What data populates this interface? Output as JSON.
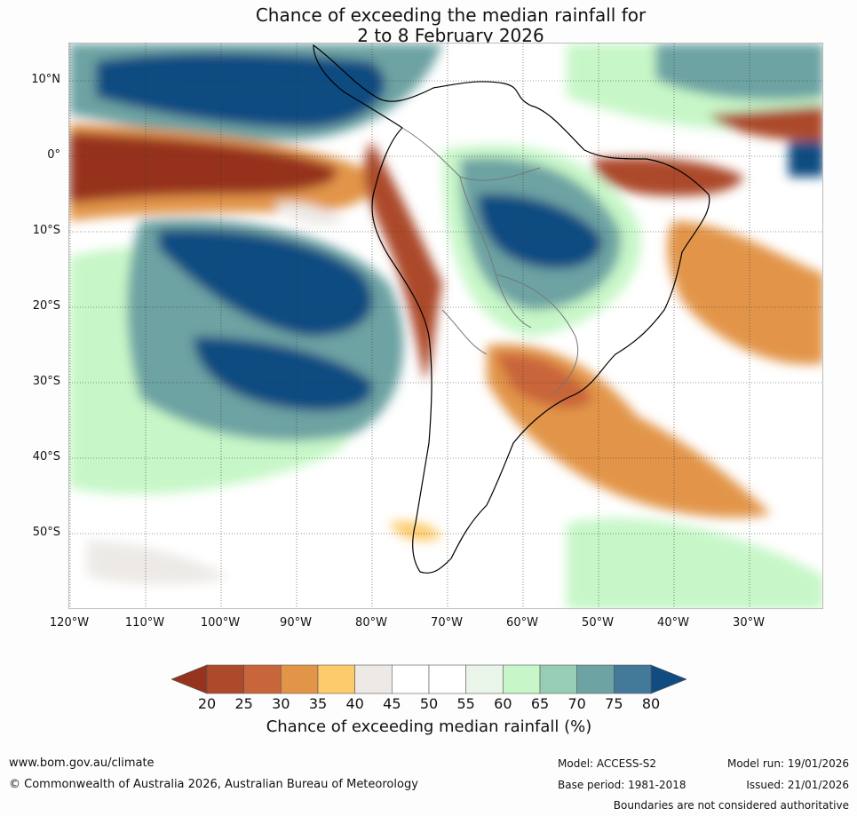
{
  "title_line1": "Chance of exceeding the median rainfall for",
  "title_line2": "2 to 8 February 2026",
  "lat_labels": [
    "10°N",
    "0°",
    "10°S",
    "20°S",
    "30°S",
    "40°S",
    "50°S"
  ],
  "lon_labels": [
    "120°W",
    "110°W",
    "100°W",
    "90°W",
    "80°W",
    "70°W",
    "60°W",
    "50°W",
    "40°W",
    "30°W"
  ],
  "colorbar": {
    "ticks": [
      "20",
      "25",
      "30",
      "35",
      "40",
      "45",
      "50",
      "55",
      "60",
      "65",
      "70",
      "75",
      "80"
    ],
    "colors": [
      "#96331f",
      "#ac4a2b",
      "#c9653a",
      "#e29549",
      "#fdcb6c",
      "#edeae6",
      "#ffffff",
      "#ffffff",
      "#e9f5e8",
      "#c7f7c8",
      "#97cdb5",
      "#6da3a3",
      "#437a99",
      "#114c81"
    ],
    "label": "Chance of exceeding median rainfall (%)"
  },
  "footer": {
    "url": "www.bom.gov.au/climate",
    "copyright": "© Commonwealth of Australia 2026, Australian Bureau of Meteorology",
    "model": "Model: ACCESS-S2",
    "base_period": "Base period: 1981-2018",
    "model_run": "Model run: 19/01/2026",
    "issued": "Issued: 21/01/2026",
    "disclaimer": "Boundaries are not considered authoritative"
  }
}
